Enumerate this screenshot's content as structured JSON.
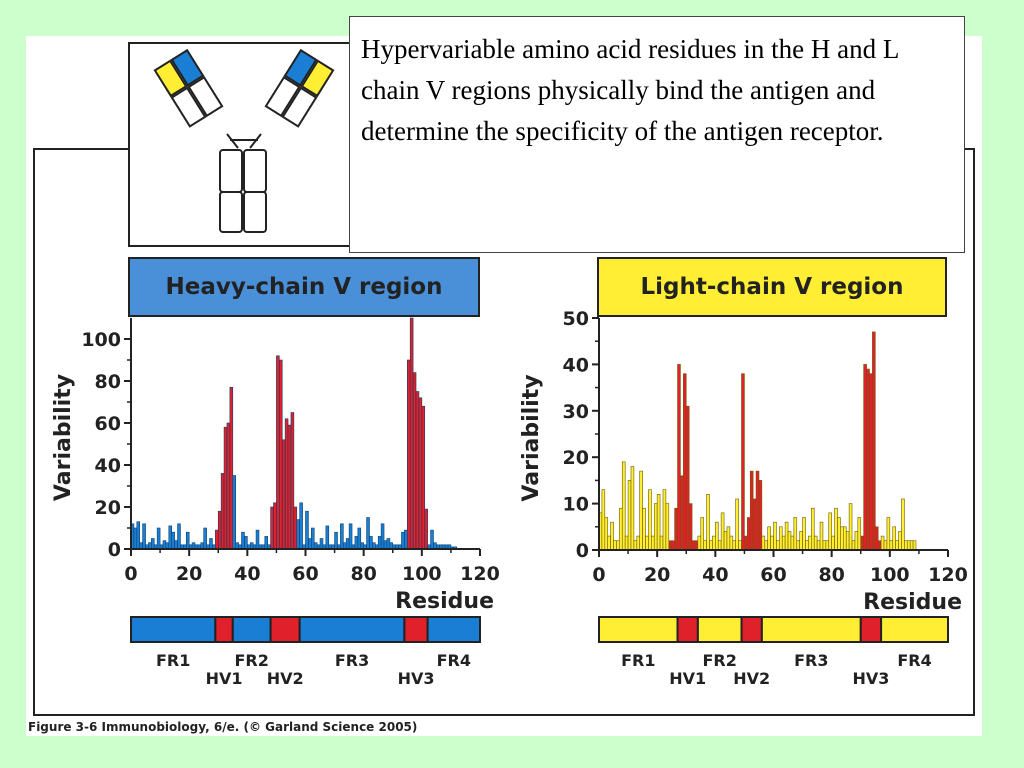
{
  "caption": "Hypervariable amino acid residues in the H and L chain V regions physically bind the antigen and determine the specificity of the antigen receptor.",
  "credit": "Figure 3-6  Immunobiology, 6/e. (© Garland Science 2005)",
  "colors": {
    "background": "#ccffcc",
    "heavy_chain": "#1a7fd4",
    "light_chain": "#ffee33",
    "hypervariable": "#e0202a"
  },
  "chart_data": [
    {
      "type": "bar",
      "title": "Heavy-chain V region",
      "xlabel": "Residue",
      "ylabel": "Variability",
      "xlim": [
        0,
        120
      ],
      "ylim": [
        0,
        110
      ],
      "xticks": [
        0,
        20,
        40,
        60,
        80,
        100,
        120
      ],
      "yticks": [
        0,
        20,
        40,
        60,
        80,
        100
      ],
      "bar_color": "#1a7fd4",
      "highlight_color": "#e0202a",
      "highlight_ranges": [
        [
          29,
          35
        ],
        [
          48,
          57
        ],
        [
          95,
          102
        ]
      ],
      "values": [
        12,
        10,
        13,
        3,
        12,
        2,
        3,
        5,
        2,
        10,
        2,
        4,
        3,
        11,
        8,
        4,
        12,
        2,
        2,
        8,
        2,
        3,
        2,
        2,
        3,
        10,
        2,
        5,
        2,
        9,
        18,
        36,
        58,
        60,
        77,
        35,
        3,
        2,
        8,
        6,
        2,
        3,
        2,
        9,
        2,
        2,
        6,
        2,
        20,
        22,
        92,
        90,
        52,
        62,
        59,
        65,
        20,
        14,
        22,
        2,
        18,
        5,
        10,
        3,
        2,
        5,
        2,
        11,
        2,
        2,
        8,
        2,
        12,
        3,
        5,
        12,
        2,
        6,
        10,
        3,
        2,
        15,
        6,
        3,
        2,
        6,
        12,
        4,
        5,
        3,
        2,
        2,
        2,
        8,
        9,
        90,
        110,
        84,
        75,
        72,
        68,
        19,
        2,
        9,
        3,
        2,
        2,
        2,
        2,
        2,
        1,
        1
      ],
      "regions": [
        {
          "label": "FR1",
          "type": "framework",
          "start": 0,
          "end": 29
        },
        {
          "label": "HV1",
          "type": "hypervariable",
          "start": 29,
          "end": 35
        },
        {
          "label": "FR2",
          "type": "framework",
          "start": 35,
          "end": 48
        },
        {
          "label": "HV2",
          "type": "hypervariable",
          "start": 48,
          "end": 58
        },
        {
          "label": "FR3",
          "type": "framework",
          "start": 58,
          "end": 94
        },
        {
          "label": "HV3",
          "type": "hypervariable",
          "start": 94,
          "end": 102
        },
        {
          "label": "FR4",
          "type": "framework",
          "start": 102,
          "end": 120
        }
      ]
    },
    {
      "type": "bar",
      "title": "Light-chain V region",
      "xlabel": "Residue",
      "ylabel": "Variability",
      "xlim": [
        0,
        120
      ],
      "ylim": [
        0,
        50
      ],
      "xticks": [
        0,
        20,
        40,
        60,
        80,
        100,
        120
      ],
      "yticks": [
        0,
        10,
        20,
        30,
        40,
        50
      ],
      "bar_color": "#ffee33",
      "highlight_color": "#e0202a",
      "highlight_ranges": [
        [
          24,
          34
        ],
        [
          49,
          56
        ],
        [
          90,
          97
        ]
      ],
      "values": [
        8,
        13,
        7,
        3,
        6,
        2,
        2,
        9,
        19,
        3,
        15,
        18,
        2,
        3,
        17,
        9,
        3,
        13,
        3,
        10,
        12,
        3,
        13,
        10,
        2,
        2,
        9,
        40,
        16,
        38,
        31,
        10,
        2,
        2,
        3,
        7,
        2,
        12,
        2,
        3,
        6,
        2,
        8,
        4,
        5,
        3,
        2,
        11,
        2,
        38,
        3,
        7,
        17,
        11,
        17,
        15,
        3,
        2,
        5,
        3,
        6,
        2,
        5,
        3,
        6,
        4,
        3,
        7,
        2,
        4,
        7,
        2,
        3,
        9,
        3,
        2,
        6,
        2,
        2,
        8,
        3,
        9,
        7,
        5,
        5,
        4,
        10,
        2,
        4,
        7,
        3,
        40,
        39,
        38,
        47,
        5,
        2,
        3,
        2,
        7,
        2,
        5,
        2,
        4,
        11,
        2,
        2,
        2,
        2
      ],
      "regions": [
        {
          "label": "FR1",
          "type": "framework",
          "start": 0,
          "end": 27
        },
        {
          "label": "HV1",
          "type": "hypervariable",
          "start": 27,
          "end": 34
        },
        {
          "label": "FR2",
          "type": "framework",
          "start": 34,
          "end": 49
        },
        {
          "label": "HV2",
          "type": "hypervariable",
          "start": 49,
          "end": 56
        },
        {
          "label": "FR3",
          "type": "framework",
          "start": 56,
          "end": 90
        },
        {
          "label": "HV3",
          "type": "hypervariable",
          "start": 90,
          "end": 97
        },
        {
          "label": "FR4",
          "type": "framework",
          "start": 97,
          "end": 120
        }
      ]
    }
  ]
}
